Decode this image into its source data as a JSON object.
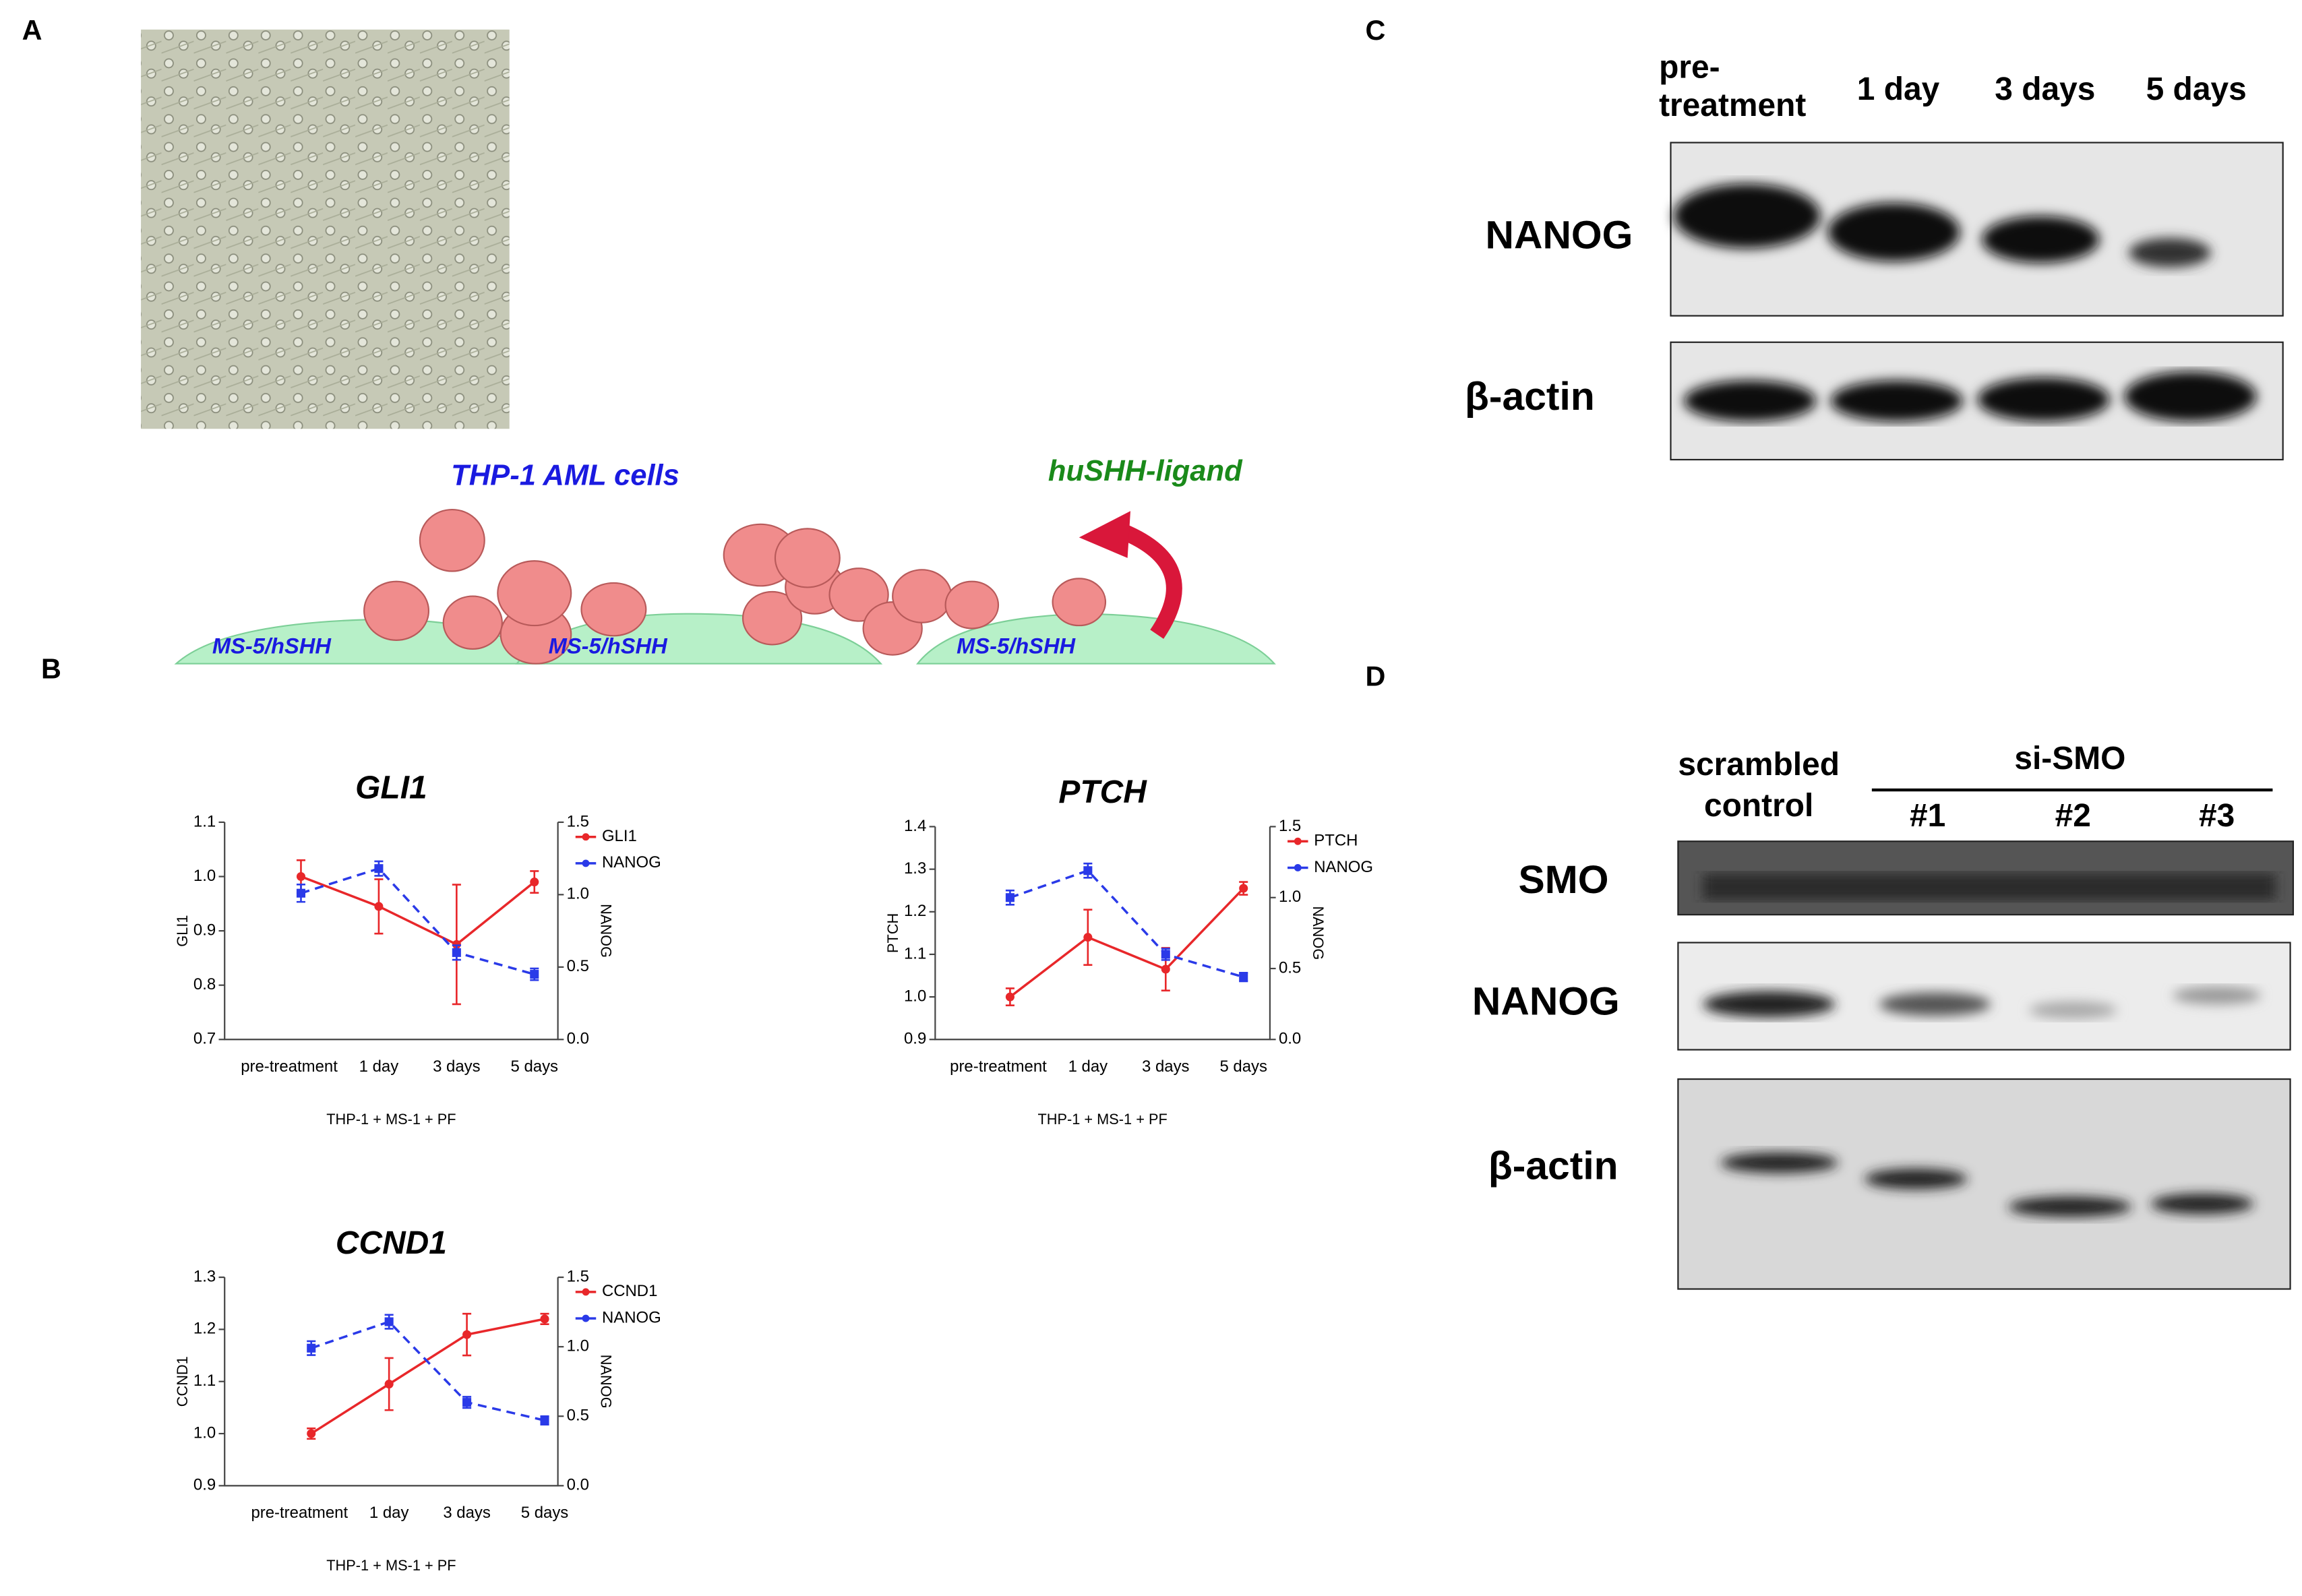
{
  "panel_labels": [
    "A",
    "B",
    "C",
    "D"
  ],
  "panel_a": {
    "cell_label": "THP-1 AML cells",
    "ligand_label": "huSHH-ligand",
    "stroma_labels": [
      "MS-5/hSHH",
      "MS-5/hSHH",
      "MS-5/hSHH"
    ]
  },
  "chart_data": [
    {
      "type": "line",
      "title": "GLI1",
      "xlabel": "THP-1 + MS-1 + PF",
      "ylabel": "GLI1",
      "y2label": "NANOG",
      "categories": [
        "pre-treatment",
        "1 day",
        "3 days",
        "5 days"
      ],
      "series": [
        {
          "name": "GLI1",
          "color": "#e8272a",
          "values": [
            1.0,
            0.945,
            0.875,
            0.99
          ],
          "errors": [
            0.03,
            0.05,
            0.11,
            0.02
          ],
          "dashed": false
        },
        {
          "name": "NANOG",
          "color": "#2a3ae8",
          "values": [
            1.01,
            1.18,
            0.6,
            0.45
          ],
          "errors": [
            0.06,
            0.05,
            0.05,
            0.04
          ],
          "dashed": true,
          "axis": "y2"
        }
      ],
      "ylim": [
        0.7,
        1.1
      ],
      "yticks": [
        0.7,
        0.8,
        0.9,
        {
          "value": 1.0,
          "label": "1.0"
        },
        1.1
      ],
      "y2lim": [
        0,
        1.5
      ],
      "y2ticks": [
        {
          "value": 0,
          "label": "0.0"
        },
        0.5,
        {
          "value": 1,
          "label": "1.0"
        },
        1.5
      ]
    },
    {
      "type": "line",
      "title": "PTCH",
      "xlabel": "THP-1 + MS-1 + PF",
      "ylabel": "PTCH",
      "y2label": "NANOG",
      "categories": [
        "pre-treatment",
        "1 day",
        "3 days",
        "5 days"
      ],
      "series": [
        {
          "name": "PTCH",
          "color": "#e8272a",
          "values": [
            1.0,
            1.14,
            1.065,
            1.255
          ],
          "errors": [
            0.02,
            0.065,
            0.05,
            0.015
          ],
          "dashed": false
        },
        {
          "name": "NANOG",
          "color": "#2a3ae8",
          "values": [
            1.0,
            1.19,
            0.6,
            0.44
          ],
          "errors": [
            0.05,
            0.05,
            0.04,
            0.03
          ],
          "dashed": true,
          "axis": "y2"
        }
      ],
      "ylim": [
        0.9,
        1.4
      ],
      "yticks": [
        0.9,
        {
          "value": 1.0,
          "label": "1.0"
        },
        1.1,
        1.2,
        1.3,
        1.4
      ],
      "y2lim": [
        0,
        1.5
      ],
      "y2ticks": [
        {
          "value": 0,
          "label": "0.0"
        },
        0.5,
        {
          "value": 1,
          "label": "1.0"
        },
        1.5
      ]
    },
    {
      "type": "line",
      "title": "CCND1",
      "xlabel": "THP-1 + MS-1 + PF",
      "ylabel": "CCND1",
      "y2label": "NANOG",
      "categories": [
        "pre-treatment",
        "1 day",
        "3 days",
        "5 days"
      ],
      "series": [
        {
          "name": "CCND1",
          "color": "#e8272a",
          "values": [
            1.0,
            1.095,
            1.19,
            1.22
          ],
          "errors": [
            0.01,
            0.05,
            0.04,
            0.01
          ],
          "dashed": false
        },
        {
          "name": "NANOG",
          "color": "#2a3ae8",
          "values": [
            0.99,
            1.18,
            0.6,
            0.47
          ],
          "errors": [
            0.05,
            0.05,
            0.04,
            0.03
          ],
          "dashed": true,
          "axis": "y2"
        }
      ],
      "ylim": [
        0.9,
        1.3
      ],
      "yticks": [
        0.9,
        {
          "value": 1.0,
          "label": "1.0"
        },
        1.1,
        1.2,
        1.3
      ],
      "y2lim": [
        0,
        1.5
      ],
      "y2ticks": [
        {
          "value": 0,
          "label": "0.0"
        },
        0.5,
        {
          "value": 1,
          "label": "1.0"
        },
        1.5
      ]
    }
  ],
  "panel_c": {
    "lanes": [
      [
        "pre-",
        "treatment"
      ],
      [
        "1 day"
      ],
      [
        "3 days"
      ],
      [
        "5 days"
      ]
    ],
    "rows": [
      "NANOG",
      "β-actin"
    ]
  },
  "panel_d": {
    "lanes": [
      [
        "scrambled",
        "control"
      ],
      [
        "#1"
      ],
      [
        "#2"
      ],
      [
        "#3"
      ]
    ],
    "group": "si-SMO",
    "rows": [
      "SMO",
      "NANOG",
      "β-actin"
    ]
  }
}
